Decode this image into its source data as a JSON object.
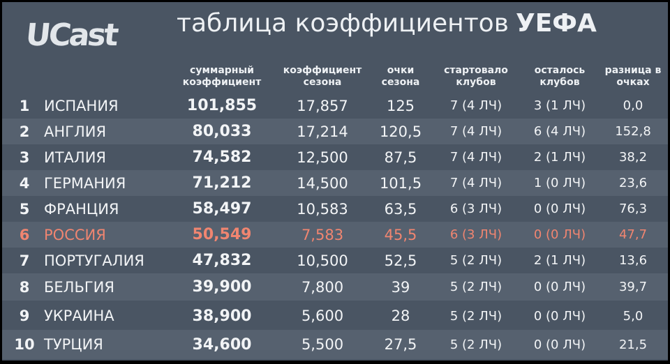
{
  "logo": "UCast",
  "title": {
    "normal": "таблица коэффициентов",
    "bold": "УЕФА"
  },
  "headers": [
    "суммарный\nкоэффициент",
    "коэффициент\nсезона",
    "очки\nсезона",
    "стартовало\nклубов",
    "осталось\nклубов",
    "разница в\nочках"
  ],
  "rows": [
    {
      "rank": "1",
      "country": "ИСПАНИЯ",
      "total": "101,855",
      "season": "17,857",
      "points": "125",
      "started": "7 (4 ЛЧ)",
      "remaining": "3 (1 ЛЧ)",
      "diff": "0,0"
    },
    {
      "rank": "2",
      "country": "АНГЛИЯ",
      "total": "80,033",
      "season": "17,214",
      "points": "120,5",
      "started": "7 (4 ЛЧ)",
      "remaining": "6 (4 ЛЧ)",
      "diff": "152,8"
    },
    {
      "rank": "3",
      "country": "ИТАЛИЯ",
      "total": "74,582",
      "season": "12,500",
      "points": "87,5",
      "started": "7 (4 ЛЧ)",
      "remaining": "2 (1 ЛЧ)",
      "diff": "38,2"
    },
    {
      "rank": "4",
      "country": "ГЕРМАНИЯ",
      "total": "71,212",
      "season": "14,500",
      "points": "101,5",
      "started": "7 (4 ЛЧ)",
      "remaining": "1 (0 ЛЧ)",
      "diff": "23,6"
    },
    {
      "rank": "5",
      "country": "ФРАНЦИЯ",
      "total": "58,497",
      "season": "10,583",
      "points": "63,5",
      "started": "6 (3 ЛЧ)",
      "remaining": "0 (0 ЛЧ)",
      "diff": "76,3"
    },
    {
      "rank": "6",
      "country": "РОССИЯ",
      "total": "50,549",
      "season": "7,583",
      "points": "45,5",
      "started": "6 (3 ЛЧ)",
      "remaining": "0 (0 ЛЧ)",
      "diff": "47,7"
    },
    {
      "rank": "7",
      "country": "ПОРТУГАЛИЯ",
      "total": "47,832",
      "season": "10,500",
      "points": "52,5",
      "started": "5 (2 ЛЧ)",
      "remaining": "2 (1 ЛЧ)",
      "diff": "13,6"
    },
    {
      "rank": "8",
      "country": "БЕЛЬГИЯ",
      "total": "39,900",
      "season": "7,800",
      "points": "39",
      "started": "5 (2 ЛЧ)",
      "remaining": "0 (0 ЛЧ)",
      "diff": "39,7"
    },
    {
      "rank": "9",
      "country": "УКРАИНА",
      "total": "38,900",
      "season": "5,600",
      "points": "28",
      "started": "5 (2 ЛЧ)",
      "remaining": "0 (0 ЛЧ)",
      "diff": "5,0"
    },
    {
      "rank": "10",
      "country": "ТУРЦИЯ",
      "total": "34,600",
      "season": "5,500",
      "points": "27,5",
      "started": "5 (2 ЛЧ)",
      "remaining": "0 (0 ЛЧ)",
      "diff": "21,5"
    }
  ],
  "highlight_color": "#f08570"
}
